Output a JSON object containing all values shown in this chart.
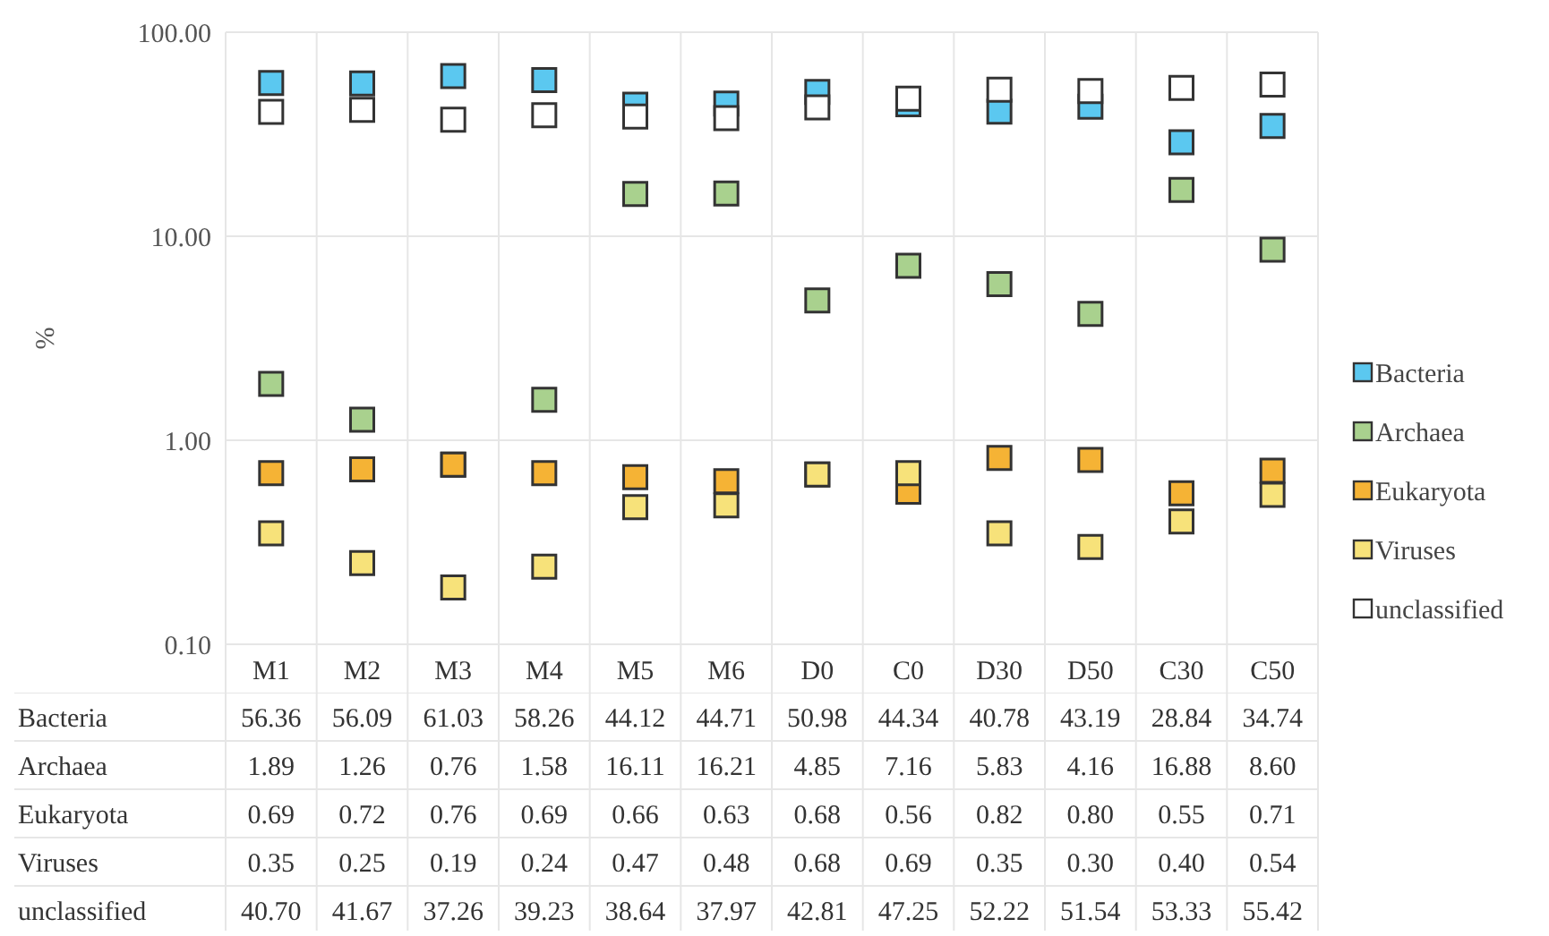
{
  "chart_data": {
    "type": "scatter",
    "ylabel": "%",
    "log": "y",
    "grid": true,
    "legend": "right",
    "marker": "square",
    "categories": [
      "M1",
      "M2",
      "M3",
      "M4",
      "M5",
      "M6",
      "D0",
      "C0",
      "D30",
      "D50",
      "C30",
      "C50"
    ],
    "ylim": [
      0.1,
      100
    ],
    "yticks": [
      {
        "value": 0.1,
        "label": "0.10"
      },
      {
        "value": 1,
        "label": "1.00"
      },
      {
        "value": 10,
        "label": "10.00"
      },
      {
        "value": 100,
        "label": "100.00"
      }
    ],
    "series": [
      {
        "name": "Bacteria",
        "color": "#5bc8f0",
        "values": [
          56.36,
          56.09,
          61.03,
          58.26,
          44.12,
          44.71,
          50.98,
          44.34,
          40.78,
          43.19,
          28.84,
          34.74
        ],
        "value_labels": [
          "56.36",
          "56.09",
          "61.03",
          "58.26",
          "44.12",
          "44.71",
          "50.98",
          "44.34",
          "40.78",
          "43.19",
          "28.84",
          "34.74"
        ]
      },
      {
        "name": "Archaea",
        "color": "#a9d18e",
        "values": [
          1.89,
          1.26,
          0.76,
          1.58,
          16.11,
          16.21,
          4.85,
          7.16,
          5.83,
          4.16,
          16.88,
          8.6
        ],
        "value_labels": [
          "1.89",
          "1.26",
          "0.76",
          "1.58",
          "16.11",
          "16.21",
          "4.85",
          "7.16",
          "5.83",
          "4.16",
          "16.88",
          "8.60"
        ]
      },
      {
        "name": "Eukaryota",
        "color": "#f5b335",
        "values": [
          0.69,
          0.72,
          0.76,
          0.69,
          0.66,
          0.63,
          0.68,
          0.56,
          0.82,
          0.8,
          0.55,
          0.71
        ],
        "value_labels": [
          "0.69",
          "0.72",
          "0.76",
          "0.69",
          "0.66",
          "0.63",
          "0.68",
          "0.56",
          "0.82",
          "0.80",
          "0.55",
          "0.71"
        ]
      },
      {
        "name": "Viruses",
        "color": "#f7e27a",
        "values": [
          0.35,
          0.25,
          0.19,
          0.24,
          0.47,
          0.48,
          0.68,
          0.69,
          0.35,
          0.3,
          0.4,
          0.54
        ],
        "value_labels": [
          "0.35",
          "0.25",
          "0.19",
          "0.24",
          "0.47",
          "0.48",
          "0.68",
          "0.69",
          "0.35",
          "0.30",
          "0.40",
          "0.54"
        ]
      },
      {
        "name": "unclassified",
        "color": "#ffffff",
        "values": [
          40.7,
          41.67,
          37.26,
          39.23,
          38.64,
          37.97,
          42.81,
          47.25,
          52.22,
          51.54,
          53.33,
          55.42
        ],
        "value_labels": [
          "40.70",
          "41.67",
          "37.26",
          "39.23",
          "38.64",
          "37.97",
          "42.81",
          "47.25",
          "52.22",
          "51.54",
          "53.33",
          "55.42"
        ]
      }
    ]
  }
}
